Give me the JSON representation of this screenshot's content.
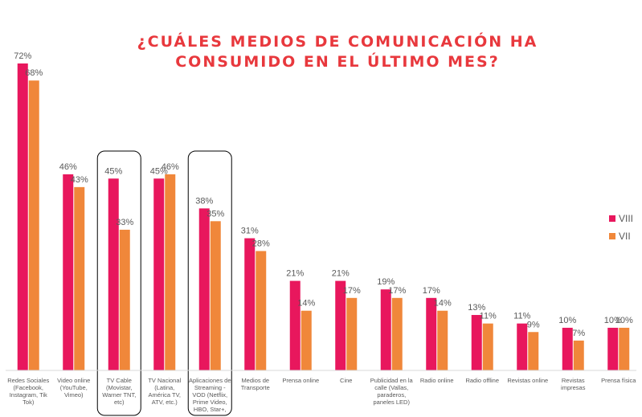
{
  "title": {
    "line1": "¿CUÁLES MEDIOS DE COMUNICACIÓN HA",
    "line2": "CONSUMIDO EN EL ÚLTIMO MES?"
  },
  "colors": {
    "title": "#e8383d",
    "series_viii": "#e8175d",
    "series_vii": "#f0873a",
    "label_text": "#595959",
    "highlight_box": "#000000"
  },
  "chart_data": {
    "type": "bar",
    "title": "¿CUÁLES MEDIOS DE COMUNICACIÓN HA CONSUMIDO EN EL ÚLTIMO MES?",
    "xlabel": "",
    "ylabel": "",
    "grid": false,
    "legend_position": "right",
    "categories": [
      [
        "Redes Sociales",
        "(Facebook,",
        "Instagram, Tik",
        "Tok)"
      ],
      [
        "Video online",
        "(YouTube,",
        "Vimeo)"
      ],
      [
        "TV Cable",
        "(Movistar,",
        "Warner TNT,",
        "etc)"
      ],
      [
        "TV Nacional",
        "(Latina,",
        "América TV,",
        "ATV, etc.)"
      ],
      [
        "Aplicaciones de",
        "Streaming -",
        "VOD (Netflix,",
        "Prime Video,",
        "HBO, Star+,"
      ],
      [
        "Medios de",
        "Transporte"
      ],
      [
        "Prensa online"
      ],
      [
        "Cine"
      ],
      [
        "Publicidad en la",
        "calle (Vallas,",
        "paraderos,",
        "paneles LED)"
      ],
      [
        "Radio online"
      ],
      [
        "Radio offline"
      ],
      [
        "Revistas online"
      ],
      [
        "Revistas",
        "impresas"
      ],
      [
        "Prensa física"
      ]
    ],
    "series": [
      {
        "name": "VIII",
        "values": [
          72,
          46,
          45,
          45,
          38,
          31,
          21,
          21,
          19,
          17,
          13,
          11,
          10,
          10
        ],
        "labels": [
          "72%",
          "46%",
          "45%",
          "45%",
          "38%",
          "31%",
          "21%",
          "21%",
          "19%",
          "17%",
          "13%",
          "11%",
          "10%",
          "10%"
        ]
      },
      {
        "name": "VII",
        "values": [
          68,
          43,
          33,
          46,
          35,
          28,
          14,
          17,
          17,
          14,
          11,
          9,
          7,
          10
        ],
        "labels": [
          "68%",
          "43%",
          "33%",
          "46%",
          "35%",
          "28%",
          "14%",
          "17%",
          "17%",
          "14%",
          "11%",
          "9%",
          "7%",
          "10%"
        ]
      }
    ],
    "highlighted_categories": [
      2,
      4
    ],
    "ylim": [
      0,
      72
    ]
  }
}
